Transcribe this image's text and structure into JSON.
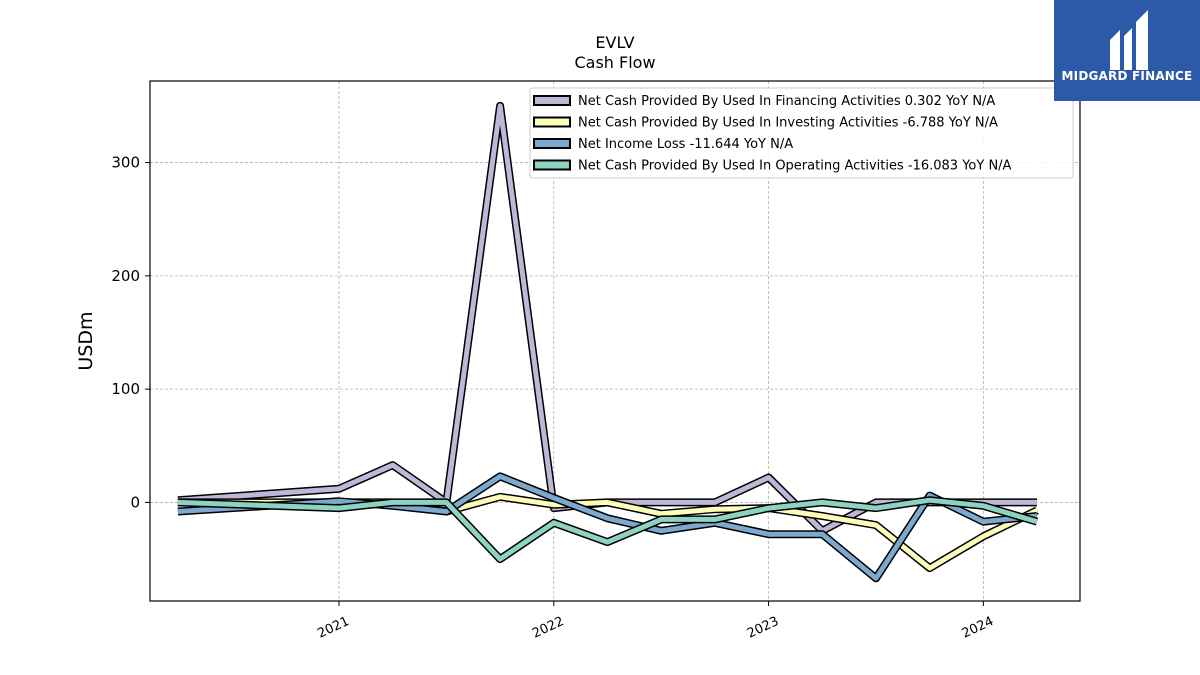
{
  "header": {
    "title": "EVLV",
    "subtitle": "Cash Flow"
  },
  "logo": {
    "text": "MIDGARD FINANCE",
    "background": "#2d5aa8"
  },
  "chart_data": {
    "type": "line",
    "title": "EVLV",
    "subtitle": "Cash Flow",
    "xlabel": "",
    "ylabel": "USDm",
    "ylim": [
      -87,
      372
    ],
    "xlim": [
      2020.12,
      2024.45
    ],
    "grid": true,
    "legend_position": "top-right",
    "x_ticks": [
      2021,
      2022,
      2023,
      2024
    ],
    "x_tick_labels": [
      "2021",
      "2022",
      "2023",
      "2024"
    ],
    "y_ticks": [
      0,
      100,
      200,
      300
    ],
    "y_tick_labels": [
      "0",
      "100",
      "200",
      "300"
    ],
    "x": [
      2020.25,
      2021.0,
      2021.25,
      2021.5,
      2021.75,
      2022.0,
      2022.25,
      2022.5,
      2022.75,
      2023.0,
      2023.25,
      2023.5,
      2023.75,
      2024.0,
      2024.25
    ],
    "series": [
      {
        "name": "Net Cash Provided By Used In Financing Activities  0.302 YoY N/A",
        "color": "#bcb8d6",
        "values": [
          2,
          12,
          33,
          0,
          350,
          -5,
          0,
          0,
          0,
          22,
          -25,
          0,
          0,
          0,
          0
        ]
      },
      {
        "name": "Net Cash Provided By Used In Investing Activities  -6.788 YoY N/A",
        "color": "#fdfdba",
        "values": [
          0,
          0,
          0,
          -8,
          5,
          -2,
          0,
          -10,
          -6,
          -5,
          -12,
          -20,
          -58,
          -30,
          -7
        ]
      },
      {
        "name": "Net Income Loss  -11.644 YoY N/A",
        "color": "#7ba9cf",
        "values": [
          -8,
          1,
          -3,
          -8,
          23,
          4,
          -14,
          -25,
          -18,
          -28,
          -28,
          -67,
          6,
          -17,
          -12
        ]
      },
      {
        "name": "Net Cash Provided By Used In Operating Activities  -16.083 YoY N/A",
        "color": "#8dd3c3",
        "values": [
          0,
          -5,
          0,
          0,
          -50,
          -18,
          -35,
          -15,
          -15,
          -5,
          0,
          -5,
          2,
          -3,
          -17
        ]
      }
    ]
  }
}
